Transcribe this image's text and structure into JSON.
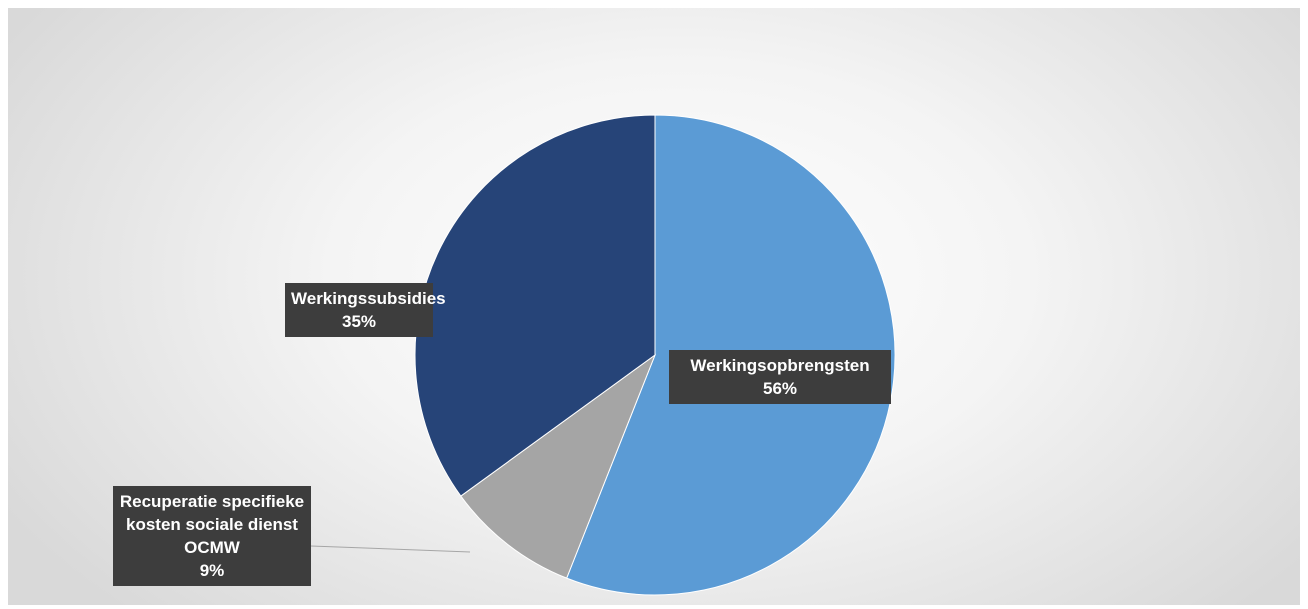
{
  "chart_data": {
    "type": "pie",
    "categories": [
      "Werkingsopbrengsten",
      "Recuperatie specifieke kosten sociale dienst OCMW",
      "Werkingssubsidies"
    ],
    "values": [
      56,
      9,
      35
    ],
    "value_labels": [
      "56%",
      "9%",
      "35%"
    ],
    "colors": [
      "#5b9bd5",
      "#a5a5a5",
      "#264478"
    ]
  }
}
